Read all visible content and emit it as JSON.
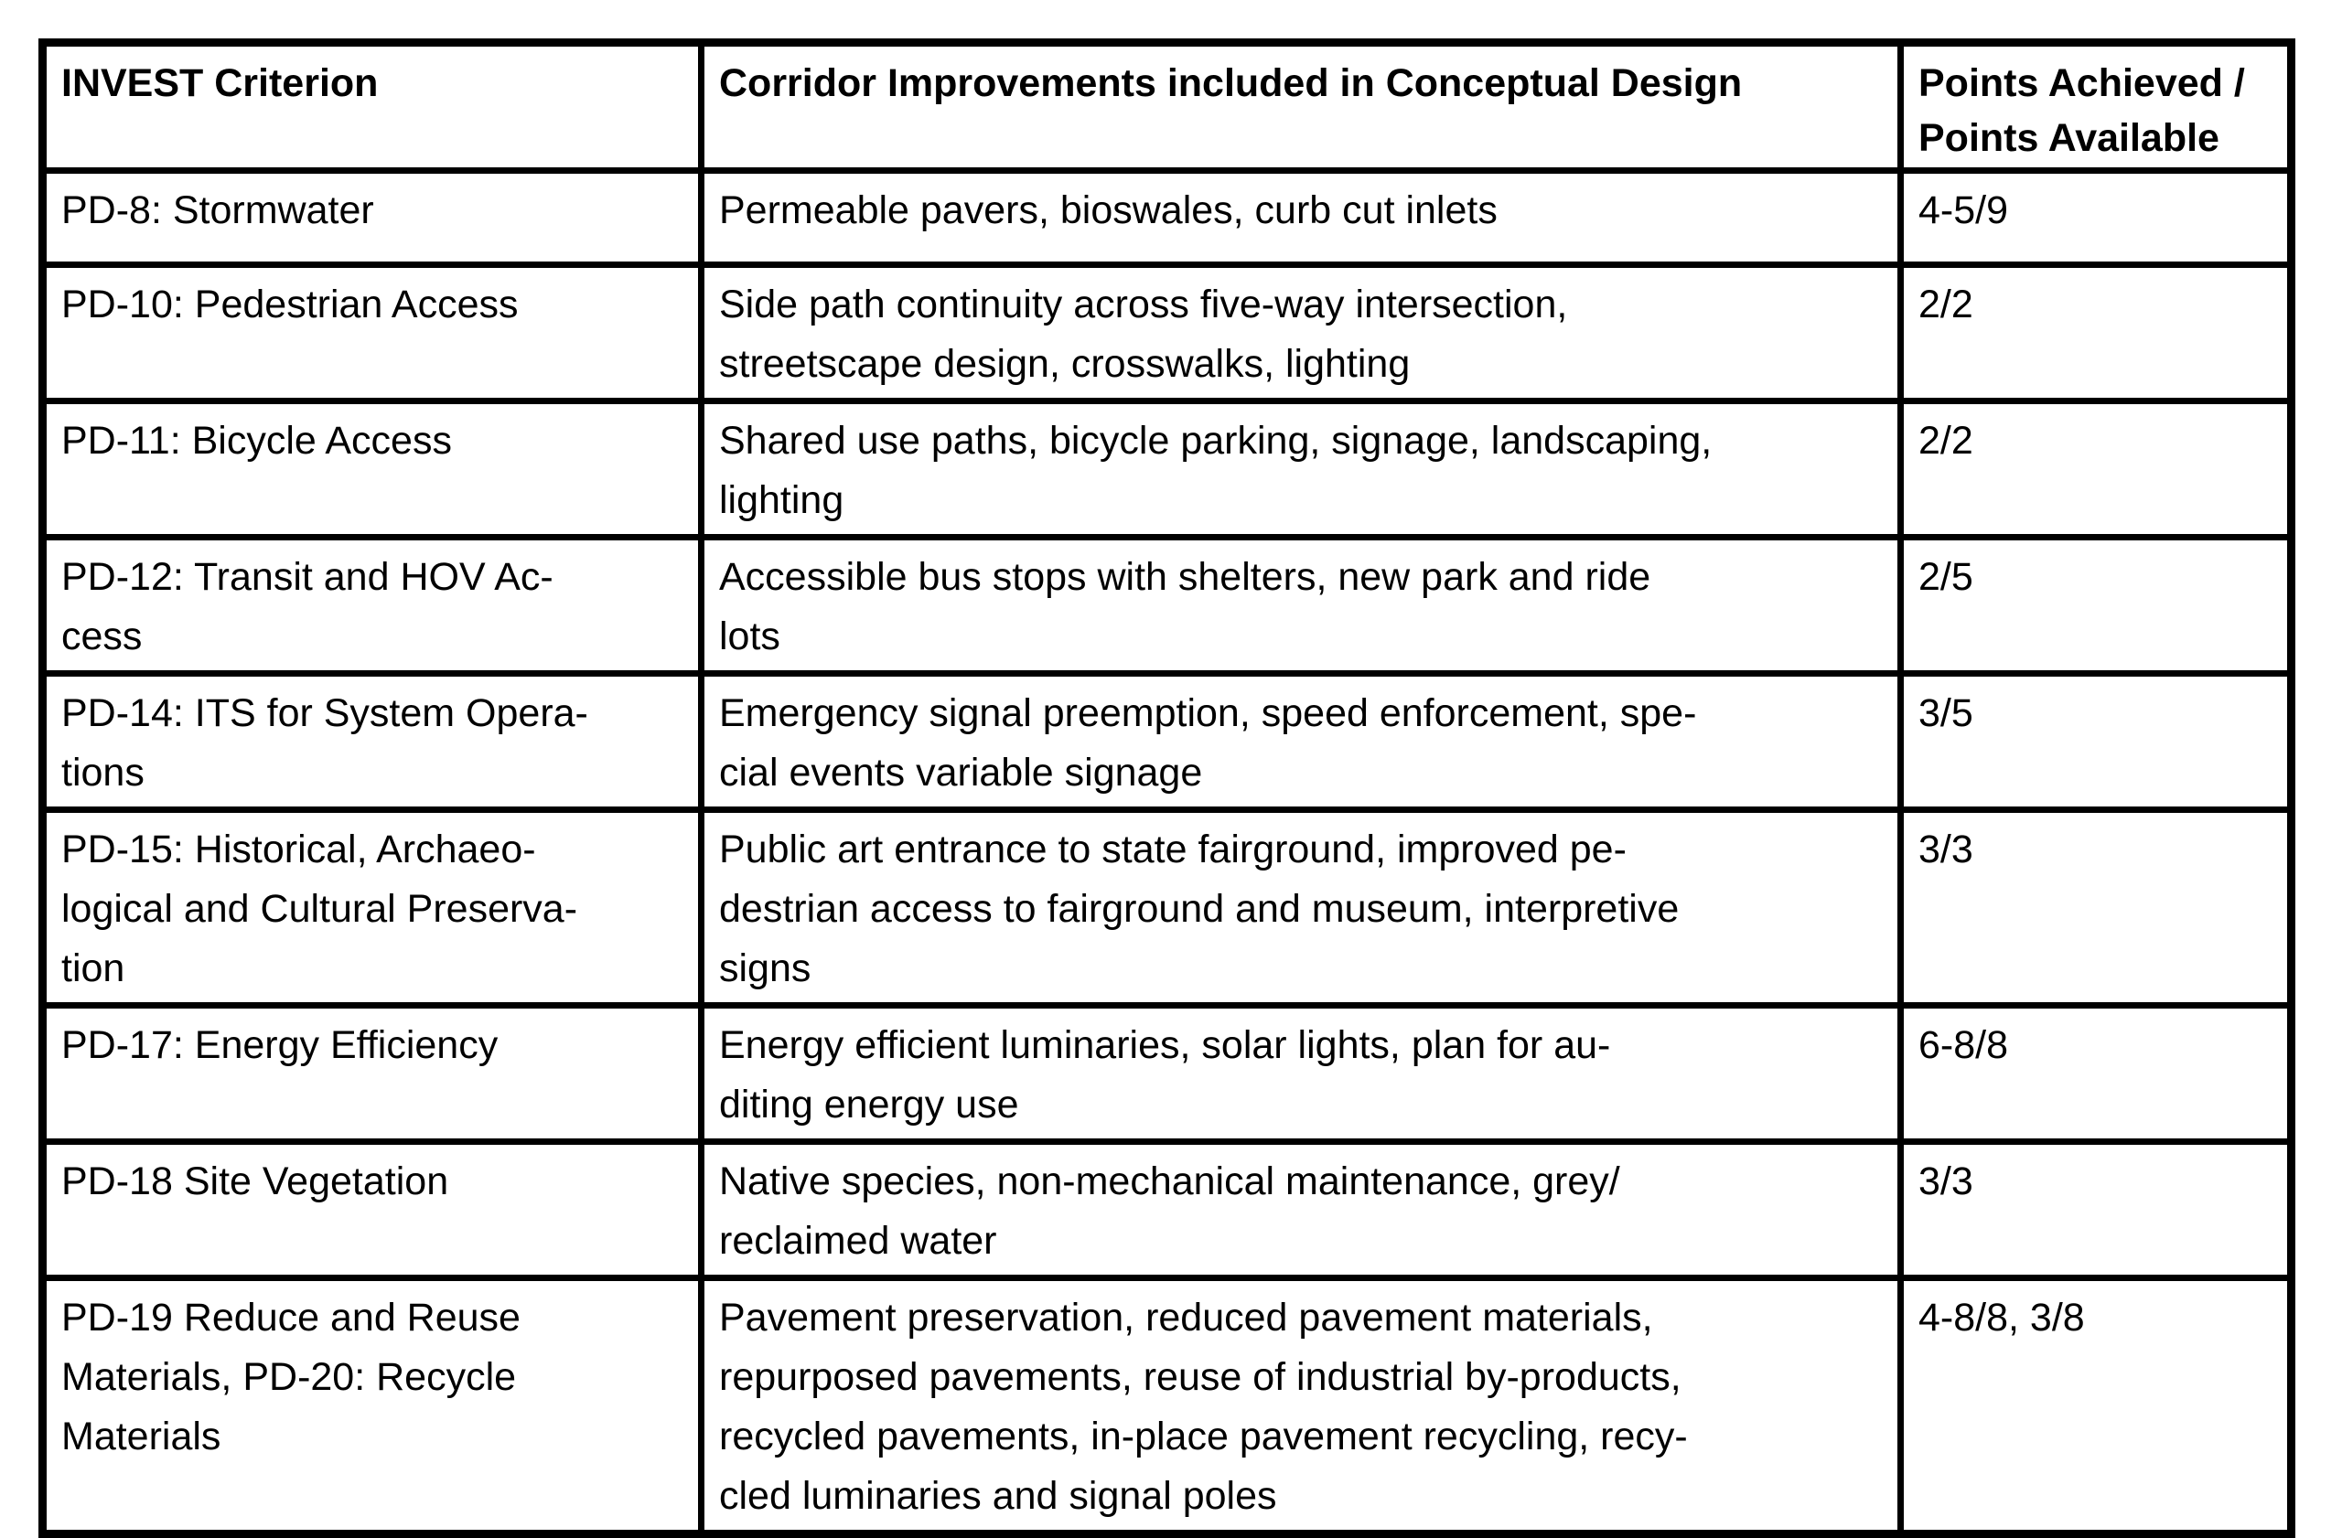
{
  "document": {
    "table": {
      "header": {
        "criterion": "INVEST Criterion",
        "improvements": "Corridor Improvements included in Conceptual Design",
        "points": "Points Achieved /\nPoints Available"
      },
      "rows": [
        {
          "criterion": "PD-8: Stormwater",
          "improvements": "Permeable pavers, bioswales, curb cut inlets",
          "points": "4-5/9"
        },
        {
          "criterion": "PD-10: Pedestrian Access",
          "improvements": "Side path continuity across five-way intersection,\nstreetscape design, crosswalks, lighting",
          "points": "2/2"
        },
        {
          "criterion": "PD-11: Bicycle Access",
          "improvements": "Shared use paths, bicycle parking, signage, landscaping,\nlighting",
          "points": "2/2"
        },
        {
          "criterion": "PD-12: Transit and HOV Ac-\ncess",
          "improvements": "Accessible bus stops with shelters, new park and ride\nlots",
          "points": "2/5"
        },
        {
          "criterion": "PD-14: ITS for System Opera-\ntions",
          "improvements": "Emergency signal preemption, speed enforcement, spe-\ncial events variable signage",
          "points": "3/5"
        },
        {
          "criterion": "PD-15: Historical, Archaeo-\nlogical and Cultural Preserva-\ntion",
          "improvements": "Public art entrance to state fairground, improved pe-\ndestrian access to fairground and museum, interpretive\nsigns",
          "points": "3/3"
        },
        {
          "criterion": "PD-17: Energy Efficiency",
          "improvements": "Energy efficient luminaries, solar lights, plan for au-\nditing energy use",
          "points": "6-8/8"
        },
        {
          "criterion": "PD-18 Site Vegetation",
          "improvements": "Native species, non-mechanical maintenance, grey/\nreclaimed water",
          "points": "3/3"
        },
        {
          "criterion": "PD-19 Reduce and Reuse\nMaterials, PD-20: Recycle\nMaterials",
          "improvements": "Pavement preservation, reduced pavement materials,\nrepurposed pavements, reuse of industrial by-products,\nrecycled pavements, in-place pavement recycling, recy-\ncled luminaries and signal poles",
          "points": "4-8/8, 3/8"
        }
      ]
    }
  }
}
